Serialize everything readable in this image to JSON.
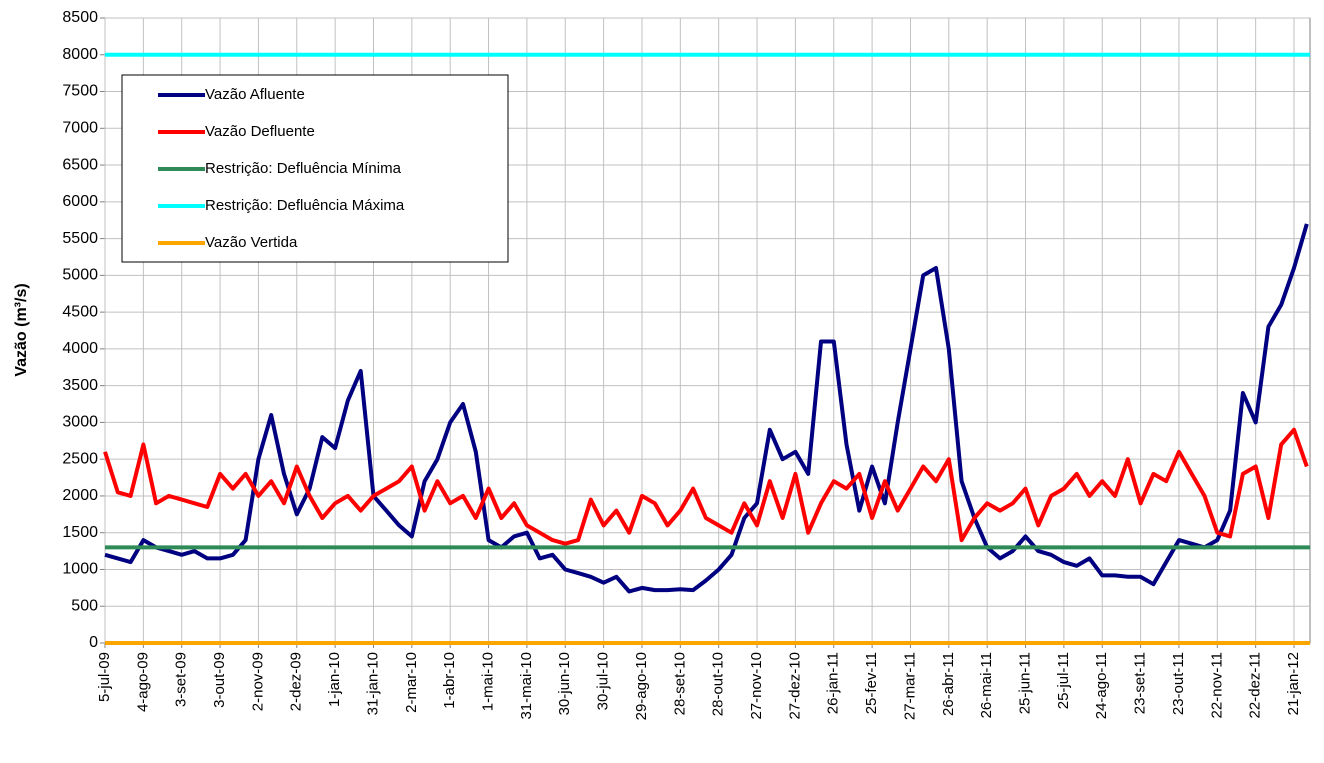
{
  "chart_data": {
    "type": "line",
    "y_label": "Vazão (m³/s)",
    "x": [
      "5-jul-09",
      "15-jul-09",
      "25-jul-09",
      "4-ago-09",
      "14-ago-09",
      "24-ago-09",
      "3-set-09",
      "13-set-09",
      "23-set-09",
      "3-out-09",
      "13-out-09",
      "23-out-09",
      "2-nov-09",
      "12-nov-09",
      "22-nov-09",
      "2-dez-09",
      "12-dez-09",
      "22-dez-09",
      "1-jan-10",
      "11-jan-10",
      "21-jan-10",
      "31-jan-10",
      "10-fev-10",
      "20-fev-10",
      "2-mar-10",
      "12-mar-10",
      "22-mar-10",
      "1-abr-10",
      "11-abr-10",
      "21-abr-10",
      "1-mai-10",
      "11-mai-10",
      "21-mai-10",
      "31-mai-10",
      "10-jun-10",
      "20-jun-10",
      "30-jun-10",
      "10-jul-10",
      "20-jul-10",
      "30-jul-10",
      "9-ago-10",
      "19-ago-10",
      "29-ago-10",
      "8-set-10",
      "18-set-10",
      "28-set-10",
      "8-out-10",
      "18-out-10",
      "28-out-10",
      "7-nov-10",
      "17-nov-10",
      "27-nov-10",
      "7-dez-10",
      "17-dez-10",
      "27-dez-10",
      "6-jan-11",
      "16-jan-11",
      "26-jan-11",
      "5-fev-11",
      "15-fev-11",
      "25-fev-11",
      "7-mar-11",
      "17-mar-11",
      "27-mar-11",
      "6-abr-11",
      "16-abr-11",
      "26-abr-11",
      "6-mai-11",
      "16-mai-11",
      "26-mai-11",
      "5-jun-11",
      "15-jun-11",
      "25-jun-11",
      "5-jul-11",
      "15-jul-11",
      "25-jul-11",
      "4-ago-11",
      "14-ago-11",
      "24-ago-11",
      "3-set-11",
      "13-set-11",
      "23-set-11",
      "3-out-11",
      "13-out-11",
      "23-out-11",
      "2-nov-11",
      "12-nov-11",
      "22-nov-11",
      "2-dez-11",
      "12-dez-11",
      "22-dez-11",
      "1-jan-12",
      "11-jan-12",
      "21-jan-12",
      "31-jan-12"
    ],
    "xticks": [
      "5-jul-09",
      "4-ago-09",
      "3-set-09",
      "3-out-09",
      "2-nov-09",
      "2-dez-09",
      "1-jan-10",
      "31-jan-10",
      "2-mar-10",
      "1-abr-10",
      "1-mai-10",
      "31-mai-10",
      "30-jun-10",
      "30-jul-10",
      "29-ago-10",
      "28-set-10",
      "28-out-10",
      "27-nov-10",
      "27-dez-10",
      "26-jan-11",
      "25-fev-11",
      "27-mar-11",
      "26-abr-11",
      "26-mai-11",
      "25-jun-11",
      "25-jul-11",
      "24-ago-11",
      "23-set-11",
      "23-out-11",
      "22-nov-11",
      "22-dez-11",
      "21-jan-12"
    ],
    "series": [
      {
        "name": "Vazão Afluente",
        "color": "#000080",
        "values": [
          1200,
          1150,
          1100,
          1400,
          1300,
          1250,
          1200,
          1250,
          1150,
          1150,
          1200,
          1400,
          2500,
          3100,
          2300,
          1750,
          2100,
          2800,
          2650,
          3300,
          3700,
          2000,
          1800,
          1600,
          1450,
          2200,
          2500,
          3000,
          3250,
          2600,
          1400,
          1300,
          1450,
          1500,
          1150,
          1200,
          1000,
          950,
          900,
          820,
          900,
          700,
          750,
          720,
          720,
          730,
          720,
          850,
          1000,
          1200,
          1700,
          1900,
          2900,
          2500,
          2600,
          2300,
          4100,
          4100,
          2700,
          1800,
          2400,
          1900,
          3000,
          4000,
          5000,
          5100,
          4000,
          2200,
          1700,
          1300,
          1150,
          1250,
          1450,
          1250,
          1200,
          1100,
          1050,
          1150,
          920,
          920,
          900,
          900,
          800,
          1100,
          1400,
          1350,
          1300,
          1400,
          1800,
          3400,
          3000,
          4300,
          4600,
          5100,
          5700
        ]
      },
      {
        "name": "Vazão Defluente",
        "color": "#ff0000",
        "values": [
          2600,
          2050,
          2000,
          2700,
          1900,
          2000,
          1950,
          1900,
          1850,
          2300,
          2100,
          2300,
          2000,
          2200,
          1900,
          2400,
          2000,
          1700,
          1900,
          2000,
          1800,
          2000,
          2100,
          2200,
          2400,
          1800,
          2200,
          1900,
          2000,
          1700,
          2100,
          1700,
          1900,
          1600,
          1500,
          1400,
          1350,
          1400,
          1950,
          1600,
          1800,
          1500,
          2000,
          1900,
          1600,
          1800,
          2100,
          1700,
          1600,
          1500,
          1900,
          1600,
          2200,
          1700,
          2300,
          1500,
          1900,
          2200,
          2100,
          2300,
          1700,
          2200,
          1800,
          2100,
          2400,
          2200,
          2500,
          1400,
          1700,
          1900,
          1800,
          1900,
          2100,
          1600,
          2000,
          2100,
          2300,
          2000,
          2200,
          2000,
          2500,
          1900,
          2300,
          2200,
          2600,
          2300,
          2000,
          1500,
          1450,
          2300,
          2400,
          1700,
          2700,
          2900,
          2400
        ]
      },
      {
        "name": "Restrição: Defluência Mínima",
        "color": "#2e8b57",
        "value": 1300
      },
      {
        "name": "Restrição: Defluência Máxima",
        "color": "#00ffff",
        "value": 8000
      },
      {
        "name": "Vazão Vertida",
        "color": "#ffa500",
        "value": 0
      }
    ],
    "ylim": [
      0,
      8500
    ],
    "yticks": [
      0,
      500,
      1000,
      1500,
      2000,
      2500,
      3000,
      3500,
      4000,
      4500,
      5000,
      5500,
      6000,
      6500,
      7000,
      7500,
      8000,
      8500
    ],
    "grid": true,
    "legend": "upper-left"
  }
}
